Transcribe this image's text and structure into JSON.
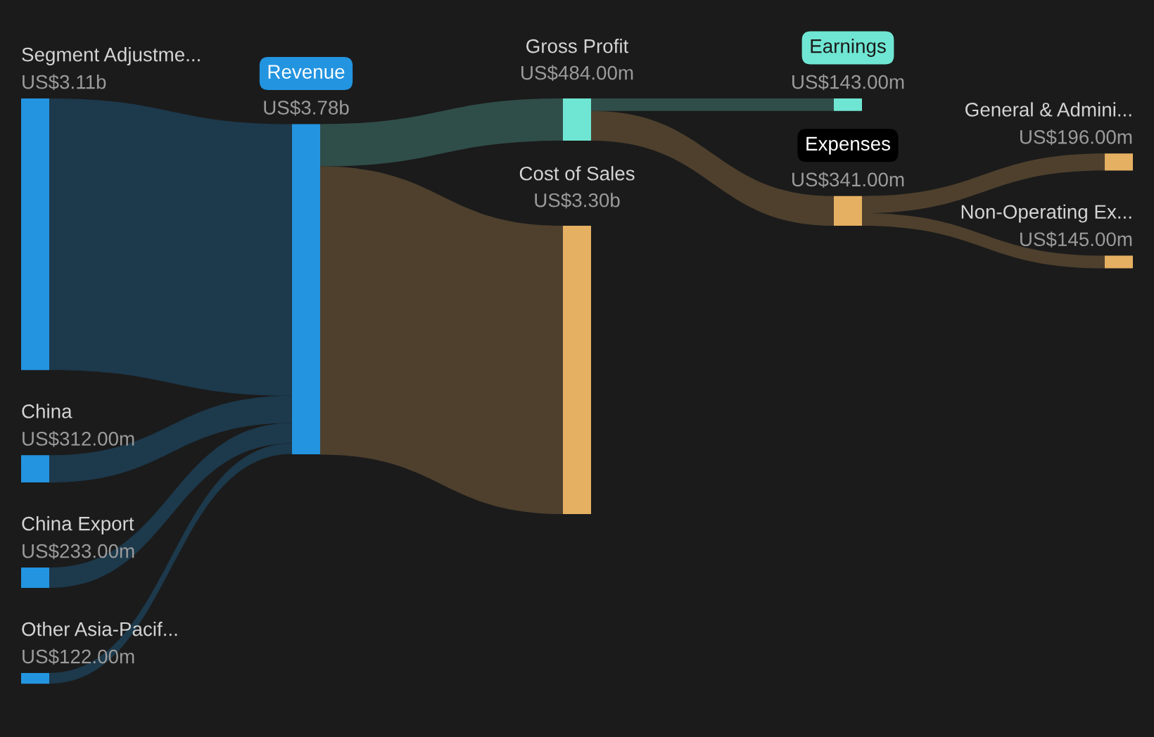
{
  "chart_data": {
    "type": "other",
    "categories": [
      "Segment Adjustme...",
      "China",
      "China Export",
      "Other Asia-Pacif...",
      "Revenue",
      "Gross Profit",
      "Cost of Sales",
      "Earnings",
      "Expenses",
      "General & Admini...",
      "Non-Operating Ex..."
    ],
    "values": [
      3110000000,
      312000000,
      233000000,
      122000000,
      3780000000,
      484000000,
      3300000000,
      143000000,
      341000000,
      196000000,
      145000000
    ],
    "value_labels": [
      "US$3.11b",
      "US$312.00m",
      "US$233.00m",
      "US$122.00m",
      "US$3.78b",
      "US$484.00m",
      "US$3.30b",
      "US$143.00m",
      "US$341.00m",
      "US$196.00m",
      "US$145.00m"
    ],
    "colors": [
      "#2394e0",
      "#2394e0",
      "#2394e0",
      "#2394e0",
      "#2394e0",
      "#6fe6d3",
      "#e5b062",
      "#6fe6d3",
      "#e5b062",
      "#e5b062",
      "#e5b062"
    ]
  }
}
